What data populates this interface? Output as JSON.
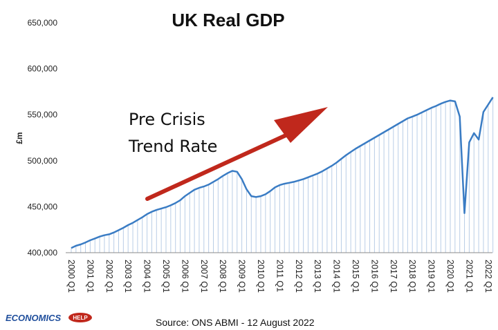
{
  "logo": {
    "main": "ECONOMICS",
    "help": "HELP"
  },
  "source": "Source: ONS ABMI - 12 August 2022",
  "annotation": {
    "line1": "Pre Crisis",
    "line2": "Trend Rate"
  },
  "colors": {
    "series": "#3a7cc4",
    "arrow": "#c0281c",
    "bars": "#b9cde6",
    "logo": "#1f4e9c"
  },
  "chart_data": {
    "type": "line",
    "title": "UK Real GDP",
    "ylabel": "£m",
    "xlabel": "",
    "ylim": [
      400000,
      650000
    ],
    "yticks": [
      400000,
      450000,
      500000,
      550000,
      600000,
      650000
    ],
    "ytick_labels": [
      "400,000",
      "450,000",
      "500,000",
      "550,000",
      "600,000",
      "650,000"
    ],
    "xtick_labels": [
      "2000 Q1",
      "2001 Q1",
      "2002 Q1",
      "2003 Q1",
      "2004 Q1",
      "2005 Q1",
      "2006 Q1",
      "2007 Q1",
      "2008 Q1",
      "2009 Q1",
      "2010 Q1",
      "2011 Q1",
      "2012 Q1",
      "2013 Q1",
      "2014 Q1",
      "2015 Q1",
      "2016 Q1",
      "2017 Q1",
      "2018 Q1",
      "2019 Q1",
      "2020 Q1",
      "2021 Q1",
      "2022 Q1"
    ],
    "grid": false,
    "x": [
      "2000 Q1",
      "2000 Q2",
      "2000 Q3",
      "2000 Q4",
      "2001 Q1",
      "2001 Q2",
      "2001 Q3",
      "2001 Q4",
      "2002 Q1",
      "2002 Q2",
      "2002 Q3",
      "2002 Q4",
      "2003 Q1",
      "2003 Q2",
      "2003 Q3",
      "2003 Q4",
      "2004 Q1",
      "2004 Q2",
      "2004 Q3",
      "2004 Q4",
      "2005 Q1",
      "2005 Q2",
      "2005 Q3",
      "2005 Q4",
      "2006 Q1",
      "2006 Q2",
      "2006 Q3",
      "2006 Q4",
      "2007 Q1",
      "2007 Q2",
      "2007 Q3",
      "2007 Q4",
      "2008 Q1",
      "2008 Q2",
      "2008 Q3",
      "2008 Q4",
      "2009 Q1",
      "2009 Q2",
      "2009 Q3",
      "2009 Q4",
      "2010 Q1",
      "2010 Q2",
      "2010 Q3",
      "2010 Q4",
      "2011 Q1",
      "2011 Q2",
      "2011 Q3",
      "2011 Q4",
      "2012 Q1",
      "2012 Q2",
      "2012 Q3",
      "2012 Q4",
      "2013 Q1",
      "2013 Q2",
      "2013 Q3",
      "2013 Q4",
      "2014 Q1",
      "2014 Q2",
      "2014 Q3",
      "2014 Q4",
      "2015 Q1",
      "2015 Q2",
      "2015 Q3",
      "2015 Q4",
      "2016 Q1",
      "2016 Q2",
      "2016 Q3",
      "2016 Q4",
      "2017 Q1",
      "2017 Q2",
      "2017 Q3",
      "2017 Q4",
      "2018 Q1",
      "2018 Q2",
      "2018 Q3",
      "2018 Q4",
      "2019 Q1",
      "2019 Q2",
      "2019 Q3",
      "2019 Q4",
      "2020 Q1",
      "2020 Q2",
      "2020 Q3",
      "2020 Q4",
      "2021 Q1",
      "2021 Q2",
      "2021 Q3",
      "2021 Q4",
      "2022 Q1",
      "2022 Q2"
    ],
    "series": [
      {
        "values": [
          405000,
          407500,
          409000,
          411000,
          413500,
          415500,
          417500,
          419000,
          420000,
          422000,
          424500,
          427000,
          430000,
          432500,
          435500,
          438500,
          442000,
          444500,
          446500,
          448000,
          449500,
          451500,
          454000,
          457000,
          461500,
          465000,
          468500,
          470500,
          472000,
          474000,
          477000,
          480000,
          483500,
          486500,
          489000,
          488000,
          480000,
          469000,
          461500,
          460500,
          461500,
          463500,
          467000,
          471000,
          473500,
          475000,
          476000,
          477000,
          478500,
          480000,
          482000,
          484000,
          486000,
          488500,
          491500,
          494500,
          498000,
          502000,
          506000,
          509500,
          513000,
          516000,
          519000,
          522000,
          525000,
          528000,
          531000,
          534000,
          537000,
          540000,
          543000,
          546000,
          548000,
          550000,
          552500,
          555000,
          557500,
          559500,
          562000,
          564000,
          565500,
          564500,
          548000,
          443000,
          520000,
          530000,
          523000,
          553000,
          561000,
          569000
        ]
      }
    ]
  }
}
